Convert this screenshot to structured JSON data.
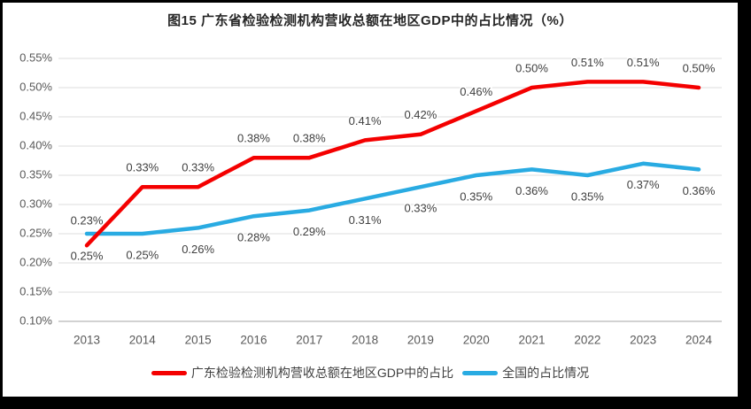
{
  "chart_data": {
    "type": "line",
    "title": "图15  广东省检验检测机构营收总额在地区GDP中的占比情况（%）",
    "categories": [
      "2013",
      "2014",
      "2015",
      "2016",
      "2017",
      "2018",
      "2019",
      "2020",
      "2021",
      "2022",
      "2023",
      "2024"
    ],
    "series": [
      {
        "key": "guangdong",
        "name": "广东检验检测机构营收总额在地区GDP中的占比",
        "color": "#F40000",
        "values": [
          0.23,
          0.33,
          0.33,
          0.38,
          0.38,
          0.41,
          0.42,
          0.46,
          0.5,
          0.51,
          0.51,
          0.5
        ],
        "data_labels": [
          "0.23%",
          "0.33%",
          "0.33%",
          "0.38%",
          "0.38%",
          "0.41%",
          "0.42%",
          "0.46%",
          "0.50%",
          "0.51%",
          "0.51%",
          "0.50%"
        ],
        "label_position": "above"
      },
      {
        "key": "national",
        "name": "全国的占比情况",
        "color": "#29ABE2",
        "values": [
          0.25,
          0.25,
          0.26,
          0.28,
          0.29,
          0.31,
          0.33,
          0.35,
          0.36,
          0.35,
          0.37,
          0.36
        ],
        "data_labels": [
          "0.25%",
          "0.25%",
          "0.26%",
          "0.28%",
          "0.29%",
          "0.31%",
          "0.33%",
          "0.35%",
          "0.36%",
          "0.35%",
          "0.37%",
          "0.36%"
        ],
        "label_position": "below"
      }
    ],
    "y_axis": {
      "min": 0.1,
      "max": 0.55,
      "step": 0.05,
      "grid": true,
      "tick_labels": [
        "0.55%",
        "0.50%",
        "0.45%",
        "0.40%",
        "0.35%",
        "0.30%",
        "0.25%",
        "0.20%",
        "0.15%",
        "0.10%"
      ],
      "tick_values": [
        0.55,
        0.5,
        0.45,
        0.4,
        0.35,
        0.3,
        0.25,
        0.2,
        0.15,
        0.1
      ]
    },
    "x_axis": {
      "labels": [
        "2013",
        "2014",
        "2015",
        "2016",
        "2017",
        "2018",
        "2019",
        "2020",
        "2021",
        "2022",
        "2023",
        "2024"
      ]
    },
    "legend_position": "bottom",
    "style_colors": {
      "gridline": "#DCDCDC",
      "axis_line": "#C4C4C4",
      "tick_label": "#595959",
      "data_label": "#404040",
      "title": "#262626"
    }
  }
}
